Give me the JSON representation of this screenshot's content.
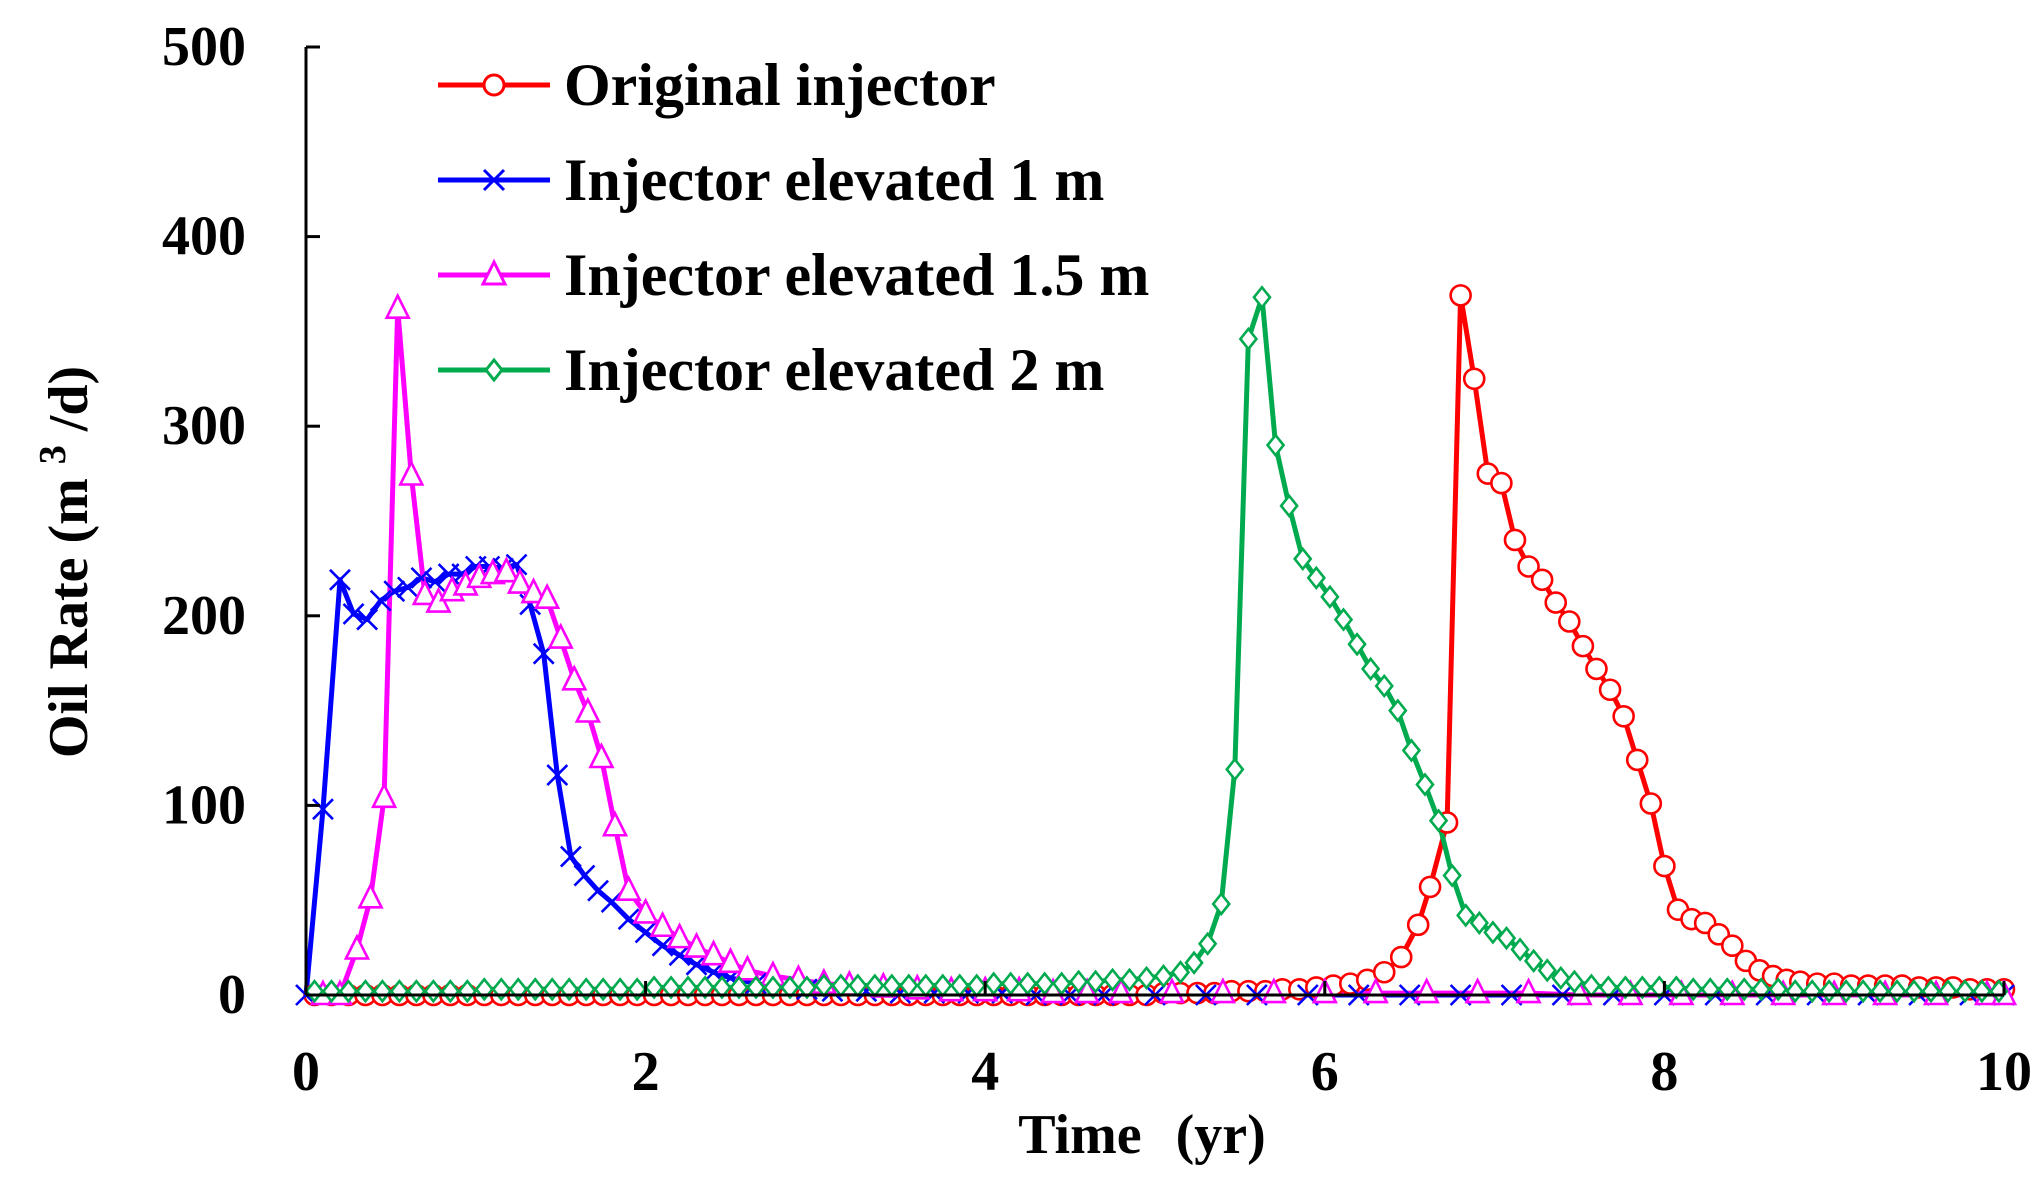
{
  "chart_data": {
    "type": "line",
    "xlabel": "Time",
    "xunit": "(yr)",
    "ylabel_prefix": "Oil Rate (m",
    "ylabel_sup": "3",
    "ylabel_suffix": "/d)",
    "xlim": [
      0,
      10
    ],
    "ylim": [
      0,
      500
    ],
    "xticks": [
      0,
      2,
      4,
      6,
      8,
      10
    ],
    "yticks": [
      0,
      100,
      200,
      300,
      400,
      500
    ],
    "grid": false,
    "legend_position": "top-left",
    "series": [
      {
        "name": "Original injector",
        "color": "#ff0000",
        "marker": "circle",
        "x": [
          0.05,
          0.15,
          0.25,
          0.35,
          0.45,
          0.55,
          0.65,
          0.75,
          0.85,
          0.95,
          1.05,
          1.15,
          1.25,
          1.35,
          1.45,
          1.55,
          1.65,
          1.75,
          1.85,
          1.95,
          2.05,
          2.15,
          2.25,
          2.35,
          2.45,
          2.55,
          2.65,
          2.75,
          2.85,
          2.95,
          3.05,
          3.15,
          3.25,
          3.35,
          3.45,
          3.55,
          3.65,
          3.75,
          3.85,
          3.95,
          4.05,
          4.15,
          4.25,
          4.35,
          4.45,
          4.55,
          4.65,
          4.75,
          4.85,
          4.95,
          5.05,
          5.15,
          5.25,
          5.35,
          5.45,
          5.55,
          5.65,
          5.75,
          5.85,
          5.95,
          6.05,
          6.15,
          6.25,
          6.35,
          6.45,
          6.55,
          6.62,
          6.72,
          6.8,
          6.88,
          6.96,
          7.04,
          7.12,
          7.2,
          7.28,
          7.36,
          7.44,
          7.52,
          7.6,
          7.68,
          7.76,
          7.84,
          7.92,
          8.0,
          8.08,
          8.16,
          8.24,
          8.32,
          8.4,
          8.48,
          8.56,
          8.64,
          8.72,
          8.8,
          8.9,
          9.0,
          9.1,
          9.2,
          9.3,
          9.4,
          9.5,
          9.6,
          9.7,
          9.8,
          9.9,
          10.0
        ],
        "y": [
          0,
          0,
          0,
          0,
          0,
          0,
          0,
          0,
          0,
          0,
          0,
          0,
          0,
          0,
          0,
          0,
          0,
          0,
          0,
          0,
          0,
          0,
          0,
          0,
          0,
          0,
          0,
          0,
          0,
          0,
          0,
          0,
          0,
          0,
          0,
          0,
          0,
          0,
          0,
          0,
          0,
          0,
          0,
          0,
          0,
          0,
          0,
          0,
          0,
          0,
          1,
          1,
          1,
          1,
          2,
          2,
          2,
          3,
          3,
          4,
          5,
          6,
          8,
          12,
          20,
          37,
          57,
          91,
          369,
          325,
          275,
          270,
          240,
          226,
          219,
          207,
          197,
          184,
          172,
          161,
          147,
          124,
          101,
          68,
          45,
          40,
          38,
          32,
          26,
          18,
          13,
          10,
          8,
          7,
          6,
          6,
          5,
          5,
          5,
          5,
          4,
          4,
          4,
          3,
          3,
          3
        ]
      },
      {
        "name": "Injector elevated 1 m",
        "color": "#0000ff",
        "marker": "x",
        "x": [
          0.0,
          0.1,
          0.2,
          0.28,
          0.36,
          0.44,
          0.52,
          0.6,
          0.68,
          0.76,
          0.84,
          0.92,
          1.0,
          1.08,
          1.16,
          1.24,
          1.32,
          1.4,
          1.48,
          1.56,
          1.64,
          1.72,
          1.8,
          1.9,
          2.0,
          2.1,
          2.2,
          2.3,
          2.4,
          2.5,
          2.65,
          2.8,
          2.95,
          3.1,
          3.3,
          3.5,
          3.7,
          3.9,
          4.1,
          4.3,
          4.5,
          4.7,
          5.0,
          5.3,
          5.6,
          5.9,
          6.2,
          6.5,
          6.8,
          7.1,
          7.4,
          7.7,
          8.0,
          8.3,
          8.6,
          8.9,
          9.2,
          9.5,
          9.8,
          10.0
        ],
        "y": [
          0,
          98,
          219,
          201,
          198,
          208,
          213,
          215,
          220,
          218,
          222,
          222,
          226,
          226,
          225,
          227,
          206,
          180,
          116,
          73,
          63,
          55,
          49,
          40,
          33,
          26,
          21,
          16,
          12,
          9,
          6,
          4,
          3,
          2,
          2,
          1,
          1,
          1,
          1,
          0,
          0,
          0,
          0,
          0,
          0,
          0,
          0,
          0,
          0,
          0,
          0,
          0,
          0,
          0,
          0,
          0,
          0,
          0,
          0,
          0
        ]
      },
      {
        "name": "Injector elevated 1.5 m",
        "color": "#ff00ff",
        "marker": "triangle",
        "x": [
          0.1,
          0.2,
          0.3,
          0.38,
          0.46,
          0.54,
          0.62,
          0.7,
          0.78,
          0.86,
          0.94,
          1.02,
          1.1,
          1.18,
          1.26,
          1.34,
          1.42,
          1.5,
          1.58,
          1.66,
          1.74,
          1.82,
          1.9,
          2.0,
          2.1,
          2.2,
          2.3,
          2.4,
          2.5,
          2.6,
          2.75,
          2.9,
          3.05,
          3.2,
          3.4,
          3.6,
          3.8,
          4.0,
          4.2,
          4.4,
          4.6,
          4.8,
          5.1,
          5.4,
          5.7,
          6.0,
          6.3,
          6.6,
          6.9,
          7.2,
          7.5,
          7.8,
          8.1,
          8.4,
          8.7,
          9.0,
          9.3,
          9.6,
          9.9,
          10.0
        ],
        "y": [
          0,
          0,
          24,
          51,
          104,
          362,
          274,
          211,
          207,
          213,
          216,
          220,
          222,
          223,
          217,
          212,
          209,
          188,
          166,
          149,
          125,
          89,
          55,
          43,
          36,
          30,
          25,
          21,
          17,
          13,
          10,
          8,
          6,
          5,
          4,
          3,
          2,
          2,
          2,
          1,
          1,
          1,
          1,
          1,
          1,
          1,
          1,
          1,
          1,
          1,
          0,
          0,
          0,
          0,
          0,
          0,
          0,
          0,
          0,
          0
        ]
      },
      {
        "name": "Injector elevated 2 m",
        "color": "#00aa4e",
        "marker": "diamond",
        "x": [
          0.05,
          0.15,
          0.25,
          0.35,
          0.45,
          0.55,
          0.65,
          0.75,
          0.85,
          0.95,
          1.05,
          1.15,
          1.25,
          1.35,
          1.45,
          1.55,
          1.65,
          1.75,
          1.85,
          1.95,
          2.05,
          2.15,
          2.25,
          2.35,
          2.45,
          2.55,
          2.65,
          2.75,
          2.85,
          2.95,
          3.05,
          3.15,
          3.25,
          3.35,
          3.45,
          3.55,
          3.65,
          3.75,
          3.85,
          3.95,
          4.05,
          4.15,
          4.25,
          4.35,
          4.45,
          4.55,
          4.65,
          4.75,
          4.85,
          4.95,
          5.05,
          5.15,
          5.23,
          5.31,
          5.39,
          5.47,
          5.55,
          5.63,
          5.71,
          5.79,
          5.87,
          5.95,
          6.03,
          6.11,
          6.19,
          6.27,
          6.35,
          6.43,
          6.51,
          6.59,
          6.67,
          6.75,
          6.83,
          6.91,
          6.99,
          7.07,
          7.15,
          7.23,
          7.31,
          7.39,
          7.47,
          7.57,
          7.67,
          7.77,
          7.87,
          7.97,
          8.07,
          8.17,
          8.27,
          8.37,
          8.47,
          8.57,
          8.67,
          8.77,
          8.87,
          8.97,
          9.07,
          9.17,
          9.27,
          9.37,
          9.47,
          9.57,
          9.67,
          9.77,
          9.87,
          9.97
        ],
        "y": [
          2,
          2,
          2,
          2,
          2,
          2,
          2,
          2,
          2,
          2,
          3,
          3,
          3,
          3,
          3,
          3,
          3,
          3,
          3,
          3,
          4,
          4,
          4,
          4,
          4,
          4,
          4,
          4,
          4,
          4,
          5,
          5,
          5,
          5,
          5,
          5,
          5,
          5,
          5,
          5,
          6,
          6,
          6,
          6,
          6,
          7,
          7,
          8,
          8,
          9,
          10,
          12,
          17,
          27,
          48,
          119,
          346,
          368,
          290,
          258,
          230,
          220,
          210,
          198,
          185,
          172,
          163,
          150,
          129,
          111,
          92,
          63,
          42,
          38,
          33,
          30,
          24,
          18,
          13,
          9,
          7,
          5,
          4,
          4,
          4,
          4,
          4,
          3,
          3,
          3,
          3,
          3,
          3,
          2,
          2,
          2,
          2,
          2,
          2,
          2,
          2,
          2,
          2,
          2,
          2,
          2
        ]
      }
    ]
  }
}
